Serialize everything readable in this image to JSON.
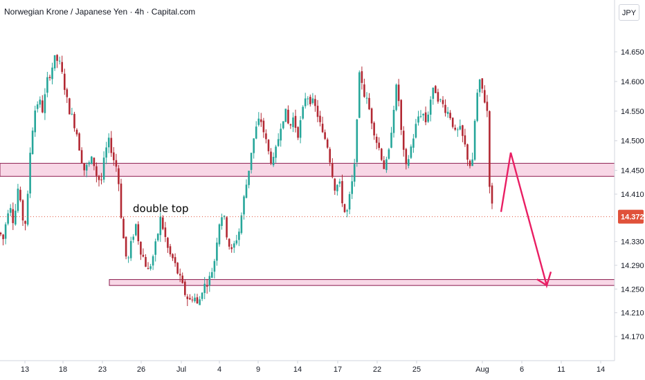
{
  "header": {
    "title": "Norwegian Krone / Japanese Yen · 4h · Capital.com",
    "currency_button": "JPY"
  },
  "chart_data": {
    "type": "candlestick",
    "title": "Norwegian Krone / Japanese Yen · 4h · Capital.com",
    "instrument": "NOKJPY",
    "timeframe": "4h",
    "source": "Capital.com",
    "currency": "JPY",
    "ylim": [
      14.15,
      14.695
    ],
    "y_ticks": [
      "14.650",
      "14.600",
      "14.550",
      "14.500",
      "14.450",
      "14.410",
      "14.330",
      "14.290",
      "14.250",
      "14.210",
      "14.170"
    ],
    "x_ticks": [
      "13",
      "18",
      "23",
      "26",
      "Jul",
      "4",
      "9",
      "14",
      "17",
      "22",
      "25",
      "Aug",
      "6",
      "11",
      "14"
    ],
    "current_price": 14.372,
    "current_price_label": "14.372",
    "colors": {
      "up": "#26a69a",
      "down": "#b22833",
      "zone_fill": "#f8d7e6",
      "zone_edge": "#8a1a4c",
      "arrow": "#e91e63",
      "badge": "#e0513a"
    },
    "price_path": [
      [
        0,
        14.345
      ],
      [
        4,
        14.33
      ],
      [
        8,
        14.36
      ],
      [
        14,
        14.4
      ],
      [
        20,
        14.36
      ],
      [
        26,
        14.42
      ],
      [
        32,
        14.37
      ],
      [
        38,
        14.36
      ],
      [
        44,
        14.49
      ],
      [
        50,
        14.55
      ],
      [
        56,
        14.57
      ],
      [
        62,
        14.55
      ],
      [
        68,
        14.6
      ],
      [
        74,
        14.62
      ],
      [
        80,
        14.64
      ],
      [
        86,
        14.63
      ],
      [
        92,
        14.6
      ],
      [
        98,
        14.56
      ],
      [
        104,
        14.54
      ],
      [
        110,
        14.52
      ],
      [
        116,
        14.48
      ],
      [
        122,
        14.45
      ],
      [
        128,
        14.46
      ],
      [
        134,
        14.47
      ],
      [
        140,
        14.44
      ],
      [
        146,
        14.43
      ],
      [
        152,
        14.48
      ],
      [
        158,
        14.5
      ],
      [
        164,
        14.47
      ],
      [
        170,
        14.45
      ],
      [
        176,
        14.36
      ],
      [
        180,
        14.32
      ],
      [
        184,
        14.29
      ],
      [
        190,
        14.33
      ],
      [
        196,
        14.36
      ],
      [
        202,
        14.32
      ],
      [
        208,
        14.3
      ],
      [
        214,
        14.28
      ],
      [
        220,
        14.3
      ],
      [
        226,
        14.33
      ],
      [
        232,
        14.37
      ],
      [
        238,
        14.34
      ],
      [
        244,
        14.31
      ],
      [
        250,
        14.3
      ],
      [
        256,
        14.28
      ],
      [
        262,
        14.26
      ],
      [
        268,
        14.24
      ],
      [
        274,
        14.23
      ],
      [
        280,
        14.24
      ],
      [
        286,
        14.22
      ],
      [
        292,
        14.25
      ],
      [
        298,
        14.26
      ],
      [
        304,
        14.27
      ],
      [
        310,
        14.3
      ],
      [
        316,
        14.36
      ],
      [
        322,
        14.38
      ],
      [
        328,
        14.34
      ],
      [
        334,
        14.31
      ],
      [
        340,
        14.33
      ],
      [
        346,
        14.35
      ],
      [
        352,
        14.4
      ],
      [
        358,
        14.44
      ],
      [
        364,
        14.49
      ],
      [
        370,
        14.52
      ],
      [
        376,
        14.54
      ],
      [
        382,
        14.51
      ],
      [
        388,
        14.48
      ],
      [
        394,
        14.46
      ],
      [
        400,
        14.49
      ],
      [
        406,
        14.53
      ],
      [
        412,
        14.55
      ],
      [
        418,
        14.52
      ],
      [
        424,
        14.54
      ],
      [
        430,
        14.51
      ],
      [
        436,
        14.54
      ],
      [
        442,
        14.58
      ],
      [
        448,
        14.57
      ],
      [
        454,
        14.56
      ],
      [
        460,
        14.54
      ],
      [
        466,
        14.51
      ],
      [
        472,
        14.5
      ],
      [
        478,
        14.46
      ],
      [
        484,
        14.42
      ],
      [
        490,
        14.43
      ],
      [
        496,
        14.39
      ],
      [
        500,
        14.37
      ],
      [
        506,
        14.41
      ],
      [
        512,
        14.45
      ],
      [
        516,
        14.55
      ],
      [
        520,
        14.62
      ],
      [
        526,
        14.58
      ],
      [
        532,
        14.56
      ],
      [
        538,
        14.53
      ],
      [
        544,
        14.5
      ],
      [
        550,
        14.48
      ],
      [
        556,
        14.45
      ],
      [
        562,
        14.48
      ],
      [
        568,
        14.55
      ],
      [
        574,
        14.6
      ],
      [
        580,
        14.51
      ],
      [
        586,
        14.45
      ],
      [
        592,
        14.48
      ],
      [
        598,
        14.51
      ],
      [
        604,
        14.54
      ],
      [
        610,
        14.55
      ],
      [
        616,
        14.53
      ],
      [
        622,
        14.57
      ],
      [
        628,
        14.59
      ],
      [
        634,
        14.57
      ],
      [
        640,
        14.56
      ],
      [
        646,
        14.55
      ],
      [
        652,
        14.54
      ],
      [
        658,
        14.51
      ],
      [
        664,
        14.52
      ],
      [
        670,
        14.5
      ],
      [
        676,
        14.47
      ],
      [
        682,
        14.45
      ],
      [
        688,
        14.57
      ],
      [
        694,
        14.6
      ],
      [
        698,
        14.58
      ],
      [
        704,
        14.55
      ],
      [
        708,
        14.41
      ],
      [
        713,
        14.375
      ]
    ],
    "zones": [
      {
        "name": "resistance-zone",
        "from": 14.44,
        "to": 14.462
      },
      {
        "name": "support-zone",
        "from": 14.256,
        "to": 14.266
      }
    ],
    "annotations": [
      {
        "text": "double top"
      }
    ],
    "projection_path": [
      [
        724,
        14.38
      ],
      [
        738,
        14.48
      ],
      [
        790,
        14.256
      ],
      [
        796,
        14.279
      ]
    ]
  }
}
